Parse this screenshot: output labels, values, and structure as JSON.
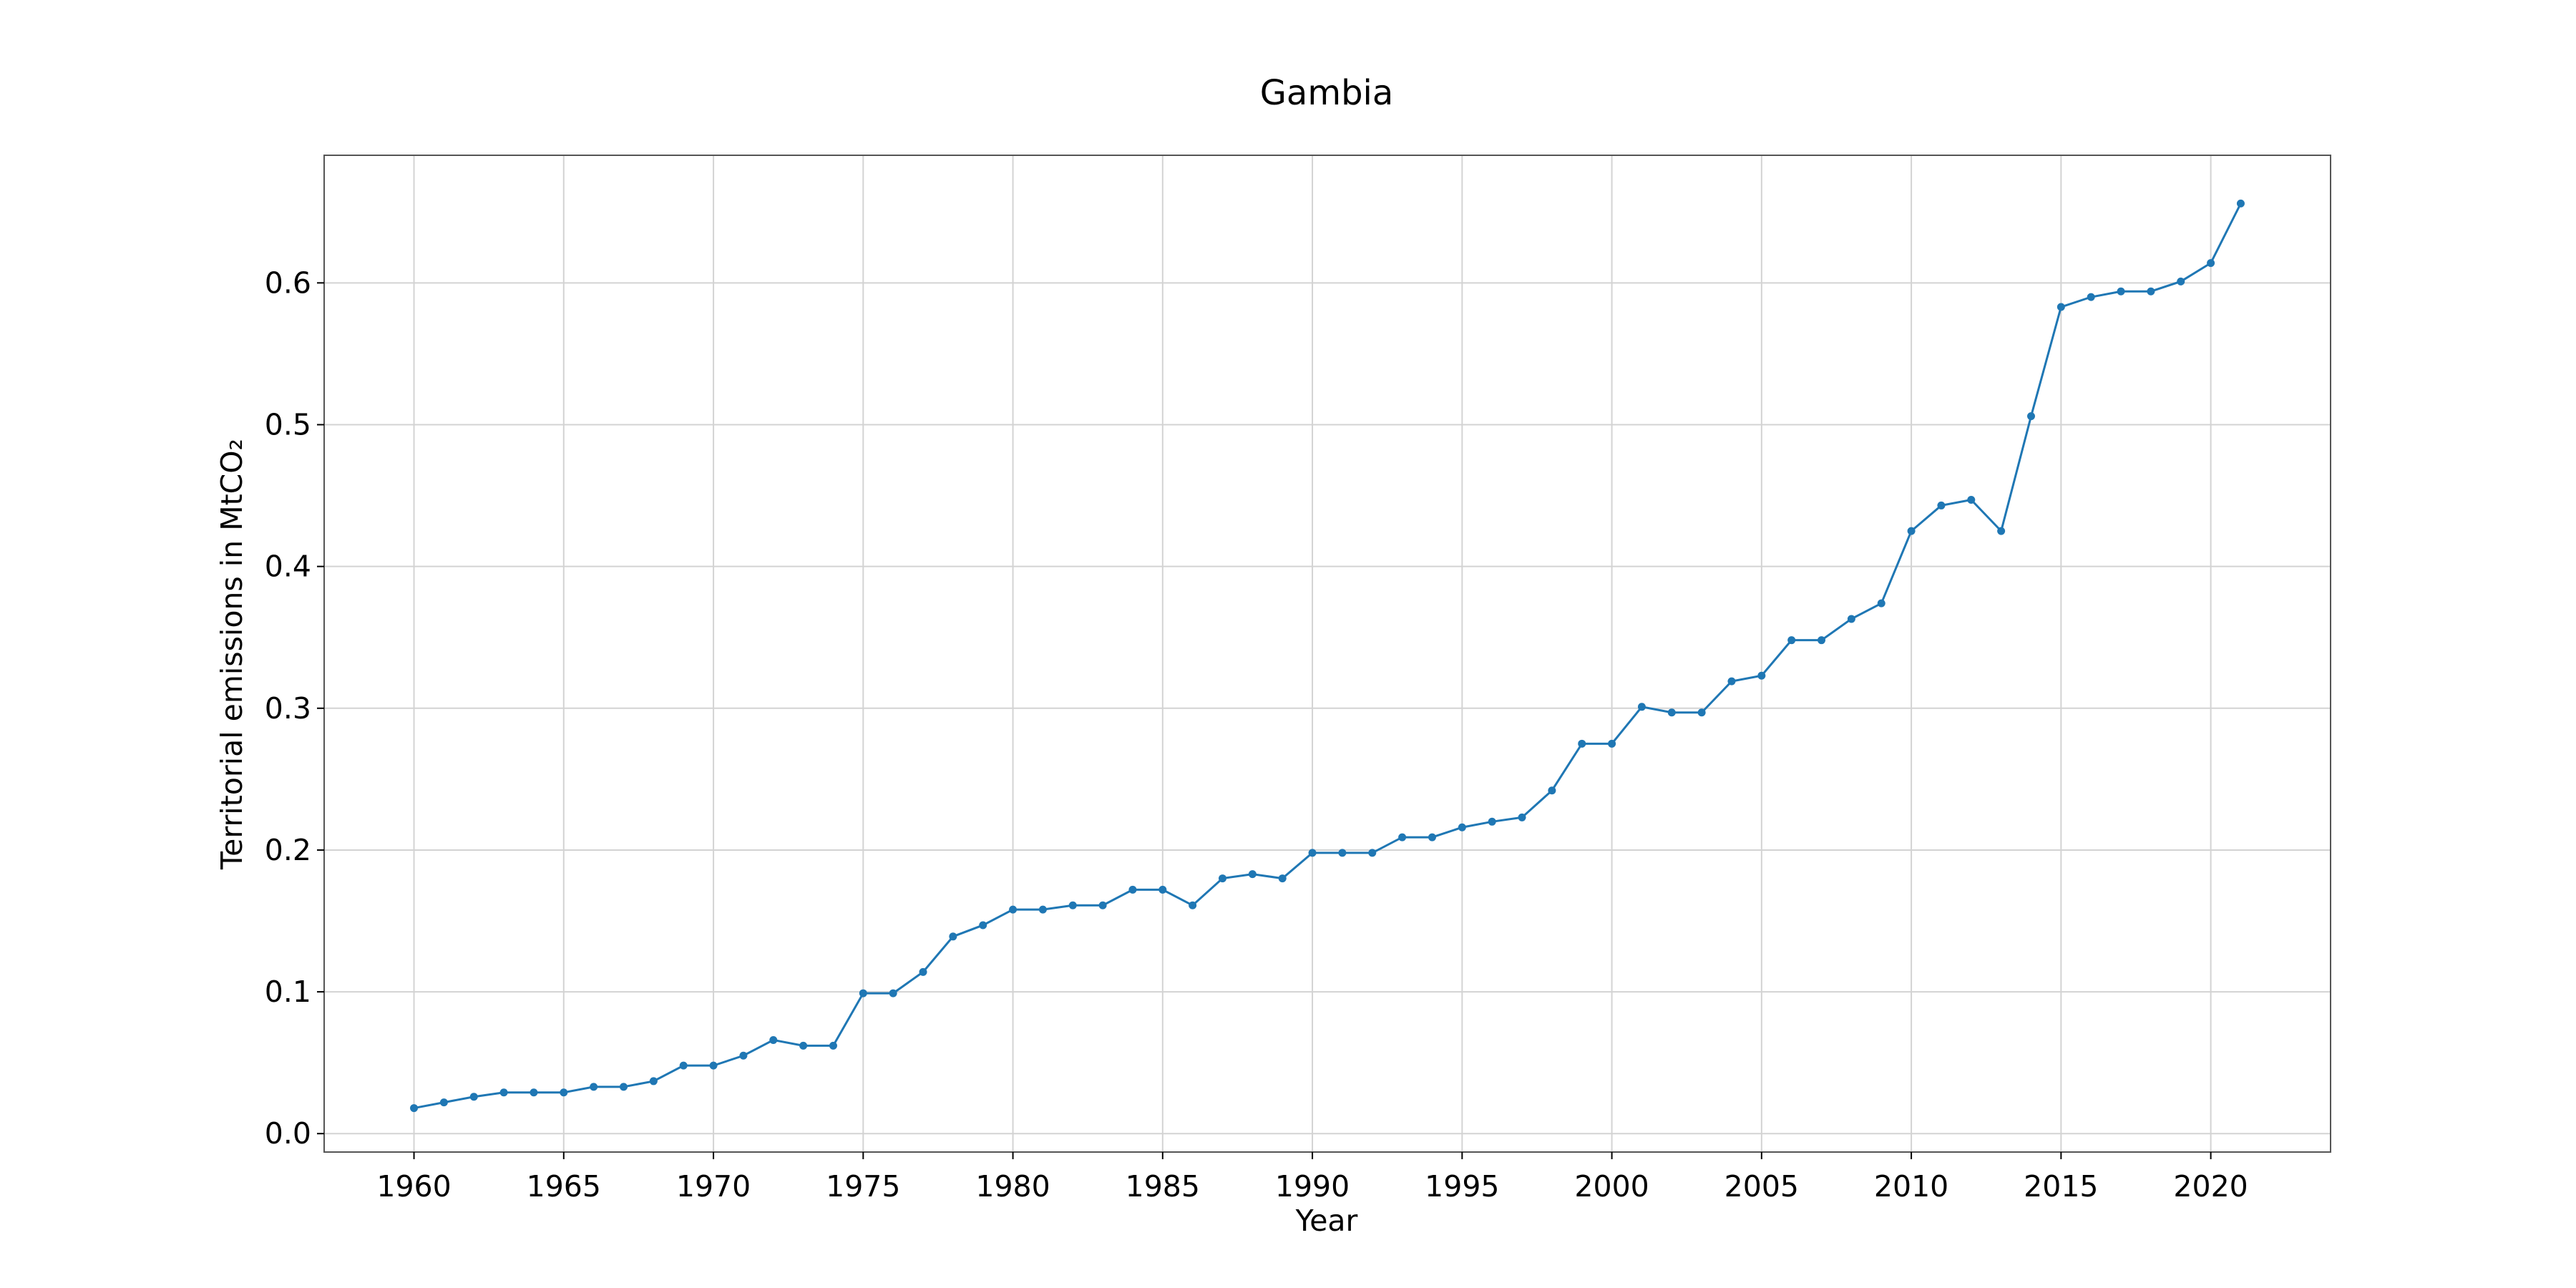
{
  "chart_data": {
    "type": "line",
    "title": "Gambia",
    "xlabel": "Year",
    "ylabel": "Territorial emissions in MtCO₂",
    "xlim": [
      1957,
      2024
    ],
    "ylim": [
      -0.013,
      0.69
    ],
    "xticks": [
      1960,
      1965,
      1970,
      1975,
      1980,
      1985,
      1990,
      1995,
      2000,
      2005,
      2010,
      2015,
      2020
    ],
    "yticks": [
      0.0,
      0.1,
      0.2,
      0.3,
      0.4,
      0.5,
      0.6
    ],
    "ytick_labels": [
      "0.0",
      "0.1",
      "0.2",
      "0.3",
      "0.4",
      "0.5",
      "0.6"
    ],
    "grid": true,
    "series": [
      {
        "name": "Gambia",
        "color": "#1f77b4",
        "x": [
          1960,
          1961,
          1962,
          1963,
          1964,
          1965,
          1966,
          1967,
          1968,
          1969,
          1970,
          1971,
          1972,
          1973,
          1974,
          1975,
          1976,
          1977,
          1978,
          1979,
          1980,
          1981,
          1982,
          1983,
          1984,
          1985,
          1986,
          1987,
          1988,
          1989,
          1990,
          1991,
          1992,
          1993,
          1994,
          1995,
          1996,
          1997,
          1998,
          1999,
          2000,
          2001,
          2002,
          2003,
          2004,
          2005,
          2006,
          2007,
          2008,
          2009,
          2010,
          2011,
          2012,
          2013,
          2014,
          2015,
          2016,
          2017,
          2018,
          2019,
          2020,
          2021
        ],
        "values": [
          0.018,
          0.022,
          0.026,
          0.029,
          0.029,
          0.029,
          0.033,
          0.033,
          0.037,
          0.048,
          0.048,
          0.055,
          0.066,
          0.062,
          0.062,
          0.099,
          0.099,
          0.114,
          0.139,
          0.147,
          0.158,
          0.158,
          0.161,
          0.161,
          0.172,
          0.172,
          0.161,
          0.18,
          0.183,
          0.18,
          0.198,
          0.198,
          0.198,
          0.209,
          0.209,
          0.216,
          0.22,
          0.223,
          0.242,
          0.275,
          0.275,
          0.301,
          0.297,
          0.297,
          0.319,
          0.323,
          0.348,
          0.348,
          0.363,
          0.374,
          0.425,
          0.443,
          0.447,
          0.425,
          0.506,
          0.583,
          0.59,
          0.594,
          0.594,
          0.601,
          0.614,
          0.656
        ]
      }
    ]
  }
}
